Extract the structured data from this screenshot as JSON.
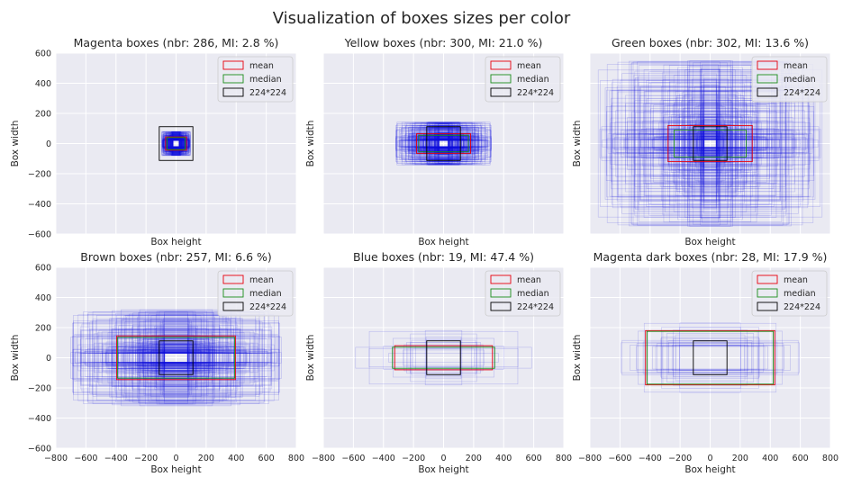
{
  "figure": {
    "title": "Visualization of boxes sizes per color"
  },
  "legend": {
    "mean": "mean",
    "median": "median",
    "ref": "224*224"
  },
  "colors": {
    "mean": "#e8000b",
    "median": "#1a8c1a",
    "ref": "#000000",
    "boxes": "#1010e0",
    "panel_bg": "#eaeaf2",
    "grid": "#ffffff"
  },
  "chart_data": [
    {
      "type": "box-overlay",
      "title": "Magenta boxes (nbr: 286, MI: 2.8 %)",
      "xlabel": "Box height",
      "ylabel": "Box width",
      "xlim": [
        -800,
        800
      ],
      "ylim": [
        -600,
        600
      ],
      "ref": [
        224,
        224
      ],
      "mean": [
        140,
        88
      ],
      "median": [
        120,
        80
      ],
      "box_count": 286,
      "spread": {
        "w_min": 40,
        "w_max": 190,
        "h_min": 40,
        "h_max": 160
      }
    },
    {
      "type": "box-overlay",
      "title": "Yellow boxes (nbr: 300, MI: 21.0 %)",
      "xlabel": "Box height",
      "ylabel": "Box width",
      "xlim": [
        -800,
        800
      ],
      "ylim": [
        -600,
        600
      ],
      "ref": [
        224,
        224
      ],
      "mean": [
        360,
        130
      ],
      "median": [
        330,
        110
      ],
      "box_count": 300,
      "spread": {
        "w_min": 60,
        "w_max": 640,
        "h_min": 40,
        "h_max": 290
      }
    },
    {
      "type": "box-overlay",
      "title": "Green boxes (nbr: 302, MI: 13.6 %)",
      "xlabel": "Box height",
      "ylabel": "Box width",
      "xlim": [
        -800,
        800
      ],
      "ylim": [
        -600,
        600
      ],
      "ref": [
        224,
        224
      ],
      "mean": [
        560,
        240
      ],
      "median": [
        480,
        180
      ],
      "box_count": 302,
      "spread": {
        "w_min": 80,
        "w_max": 1500,
        "h_min": 50,
        "h_max": 1100
      }
    },
    {
      "type": "box-overlay",
      "title": "Brown boxes (nbr: 257, MI: 6.6 %)",
      "xlabel": "Box height",
      "ylabel": "Box width",
      "xlim": [
        -800,
        800
      ],
      "ylim": [
        -600,
        600
      ],
      "ref": [
        224,
        224
      ],
      "mean": [
        790,
        290
      ],
      "median": [
        780,
        270
      ],
      "box_count": 257,
      "spread": {
        "w_min": 150,
        "w_max": 1400,
        "h_min": 60,
        "h_max": 640
      }
    },
    {
      "type": "box-overlay",
      "title": "Blue boxes (nbr: 19, MI: 47.4 %)",
      "xlabel": "Box height",
      "ylabel": "Box width",
      "xlim": [
        -800,
        800
      ],
      "ylim": [
        -600,
        600
      ],
      "ref": [
        224,
        224
      ],
      "mean": [
        650,
        160
      ],
      "median": [
        680,
        140
      ],
      "box_count": 19,
      "spread": {
        "w_min": 220,
        "w_max": 1220,
        "h_min": 60,
        "h_max": 380
      }
    },
    {
      "type": "box-overlay",
      "title": "Magenta dark boxes (nbr: 28, MI: 17.9 %)",
      "xlabel": "Box height",
      "ylabel": "Box width",
      "xlim": [
        -800,
        800
      ],
      "ylim": [
        -600,
        600
      ],
      "ref": [
        224,
        224
      ],
      "mean": [
        860,
        360
      ],
      "median": [
        840,
        350
      ],
      "box_count": 28,
      "spread": {
        "w_min": 400,
        "w_max": 1200,
        "h_min": 150,
        "h_max": 500
      }
    }
  ]
}
